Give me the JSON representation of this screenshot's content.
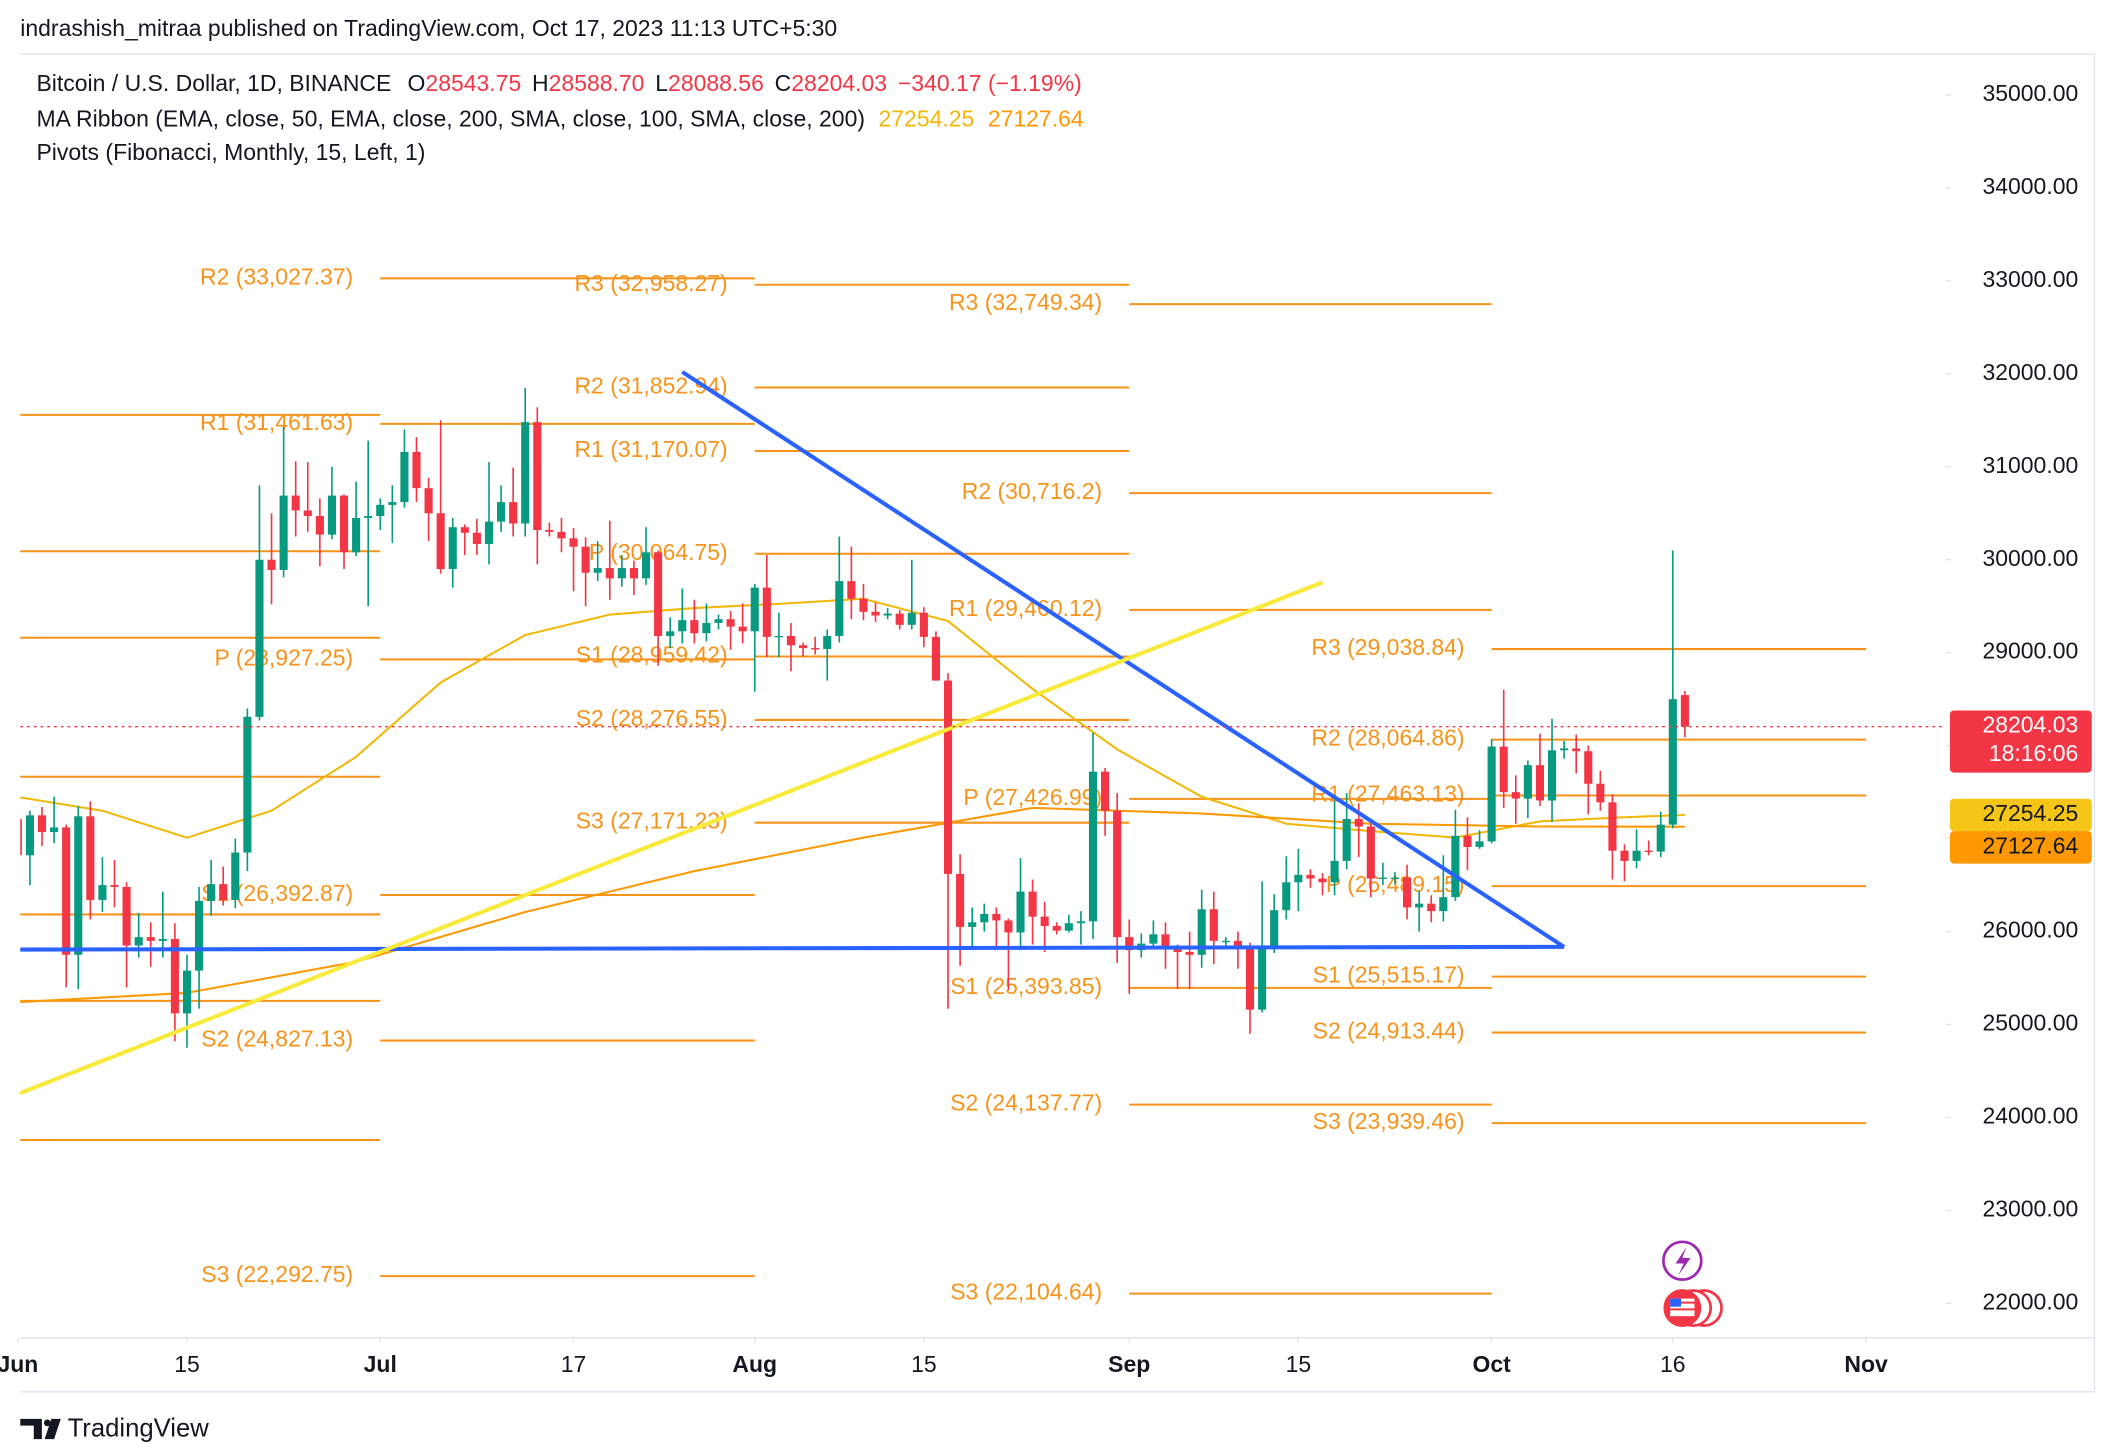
{
  "attribution": "indrashish_mitraa published on TradingView.com, Oct 17, 2023 11:13 UTC+5:30",
  "footer_logo": "TradingView",
  "chart_data": {
    "type": "candlestick",
    "title": "Bitcoin / U.S. Dollar, 1D, BINANCE",
    "header_ohlc": [
      {
        "prefix": "O",
        "text": "28543.75"
      },
      {
        "prefix": "H",
        "text": "28588.70"
      },
      {
        "prefix": "L",
        "text": "28088.56"
      },
      {
        "prefix": "C",
        "text": "28204.03"
      }
    ],
    "header_change": "−340.17 (−1.19%)",
    "countdown": "18:16:06",
    "up_color": "#089981",
    "down_color": "#f23645",
    "dates": [
      "Jun 1",
      "Jun 2",
      "Jun 3",
      "Jun 4",
      "Jun 5",
      "Jun 6",
      "Jun 7",
      "Jun 8",
      "Jun 9",
      "Jun 10",
      "Jun 11",
      "Jun 12",
      "Jun 13",
      "Jun 14",
      "Jun 15",
      "Jun 16",
      "Jun 17",
      "Jun 18",
      "Jun 19",
      "Jun 20",
      "Jun 21",
      "Jun 22",
      "Jun 23",
      "Jun 24",
      "Jun 25",
      "Jun 26",
      "Jun 27",
      "Jun 28",
      "Jun 29",
      "Jun 30",
      "Jul 1",
      "Jul 2",
      "Jul 3",
      "Jul 4",
      "Jul 5",
      "Jul 6",
      "Jul 7",
      "Jul 8",
      "Jul 9",
      "Jul 10",
      "Jul 11",
      "Jul 12",
      "Jul 13",
      "Jul 14",
      "Jul 15",
      "Jul 16",
      "Jul 17",
      "Jul 18",
      "Jul 19",
      "Jul 20",
      "Jul 21",
      "Jul 22",
      "Jul 23",
      "Jul 24",
      "Jul 25",
      "Jul 26",
      "Jul 27",
      "Jul 28",
      "Jul 29",
      "Jul 30",
      "Jul 31",
      "Aug 1",
      "Aug 2",
      "Aug 3",
      "Aug 4",
      "Aug 5",
      "Aug 6",
      "Aug 7",
      "Aug 8",
      "Aug 9",
      "Aug 10",
      "Aug 11",
      "Aug 12",
      "Aug 13",
      "Aug 14",
      "Aug 15",
      "Aug 16",
      "Aug 17",
      "Aug 18",
      "Aug 19",
      "Aug 20",
      "Aug 21",
      "Aug 22",
      "Aug 23",
      "Aug 24",
      "Aug 25",
      "Aug 26",
      "Aug 27",
      "Aug 28",
      "Aug 29",
      "Aug 30",
      "Aug 31",
      "Sep 1",
      "Sep 2",
      "Sep 3",
      "Sep 4",
      "Sep 5",
      "Sep 6",
      "Sep 7",
      "Sep 8",
      "Sep 9",
      "Sep 10",
      "Sep 11",
      "Sep 12",
      "Sep 13",
      "Sep 14",
      "Sep 15",
      "Sep 16",
      "Sep 17",
      "Sep 18",
      "Sep 19",
      "Sep 20",
      "Sep 21",
      "Sep 22",
      "Sep 23",
      "Sep 24",
      "Sep 25",
      "Sep 26",
      "Sep 27",
      "Sep 28",
      "Sep 29",
      "Sep 30",
      "Oct 1",
      "Oct 2",
      "Oct 3",
      "Oct 4",
      "Oct 5",
      "Oct 6",
      "Oct 7",
      "Oct 8",
      "Oct 9",
      "Oct 10",
      "Oct 11",
      "Oct 12",
      "Oct 13",
      "Oct 14",
      "Oct 15",
      "Oct 16",
      "Oct 17"
    ],
    "open": [
      27210,
      26820,
      27250,
      27070,
      27120,
      25750,
      27240,
      26340,
      26500,
      26480,
      25850,
      25940,
      25900,
      25920,
      25120,
      25580,
      26330,
      26510,
      26340,
      26850,
      28310,
      30000,
      29890,
      30690,
      30530,
      30470,
      30270,
      30690,
      30080,
      30450,
      30470,
      30590,
      30620,
      31160,
      30770,
      30500,
      29900,
      30350,
      30290,
      30170,
      30410,
      30620,
      30390,
      31480,
      30320,
      30300,
      30230,
      30140,
      29860,
      29910,
      29800,
      29910,
      29800,
      30080,
      29180,
      29230,
      29350,
      29210,
      29320,
      29360,
      29280,
      29230,
      29700,
      29170,
      29180,
      29080,
      29050,
      29040,
      29180,
      29770,
      29580,
      29440,
      29400,
      29420,
      29300,
      29430,
      29170,
      28700,
      26620,
      26050,
      26100,
      26190,
      26120,
      25990,
      26430,
      26160,
      26060,
      26010,
      26090,
      26110,
      27720,
      27300,
      25940,
      25800,
      25870,
      25970,
      25810,
      25780,
      25750,
      26240,
      25900,
      25900,
      25840,
      25160,
      25840,
      26230,
      26530,
      26610,
      26570,
      26530,
      26760,
      27210,
      27130,
      26570,
      26580,
      26580,
      26260,
      26300,
      26220,
      26370,
      27030,
      26910,
      26970,
      27990,
      27500,
      27430,
      27790,
      27410,
      27950,
      27970,
      27940,
      27590,
      27390,
      26870,
      26760,
      26870,
      26860,
      27150,
      28543.75
    ],
    "high": [
      27350,
      27300,
      27340,
      27450,
      27150,
      27350,
      27400,
      26800,
      26770,
      26530,
      26200,
      26100,
      26430,
      26090,
      25750,
      26480,
      26770,
      26700,
      27000,
      28400,
      30800,
      30500,
      31430,
      31060,
      31050,
      30660,
      31000,
      30700,
      30840,
      31280,
      30660,
      30800,
      31400,
      31320,
      30880,
      31500,
      30450,
      30380,
      30440,
      31050,
      30800,
      30990,
      31850,
      31640,
      30400,
      30450,
      30340,
      30240,
      30200,
      30420,
      30050,
      29990,
      30350,
      30100,
      29380,
      29690,
      29570,
      29530,
      29410,
      29450,
      29530,
      29740,
      30050,
      29430,
      29320,
      29110,
      29170,
      29250,
      30250,
      30140,
      29740,
      29540,
      29480,
      29460,
      30000,
      29490,
      29230,
      28780,
      26830,
      26260,
      26300,
      26260,
      26140,
      26790,
      26560,
      26320,
      26100,
      26180,
      26220,
      28140,
      27760,
      27490,
      26130,
      25980,
      26120,
      26100,
      25860,
      26000,
      26450,
      26430,
      25940,
      26000,
      25880,
      26540,
      26400,
      26810,
      26890,
      26670,
      26630,
      27410,
      27490,
      27380,
      27160,
      26740,
      26640,
      26720,
      26440,
      26390,
      26820,
      27310,
      27230,
      27090,
      28070,
      28600,
      27680,
      27840,
      28130,
      28290,
      28050,
      28120,
      28000,
      27730,
      27480,
      26940,
      27100,
      26980,
      27290,
      30100,
      28588.7
    ],
    "low": [
      26600,
      26500,
      26920,
      26950,
      25400,
      25380,
      26130,
      26210,
      26260,
      25400,
      25720,
      25620,
      25720,
      24820,
      24750,
      25170,
      26170,
      26280,
      26250,
      26650,
      28270,
      29520,
      29810,
      30250,
      30300,
      29930,
      30220,
      29900,
      30040,
      29500,
      30320,
      30180,
      30560,
      30620,
      30200,
      29850,
      29700,
      30050,
      30050,
      29950,
      30300,
      30250,
      30250,
      29950,
      30250,
      30080,
      29660,
      29500,
      29770,
      29570,
      29710,
      29620,
      29730,
      28860,
      29050,
      29100,
      29100,
      29120,
      29250,
      29030,
      29100,
      28580,
      28950,
      28950,
      28800,
      28960,
      28980,
      28700,
      29110,
      29360,
      29350,
      29330,
      29360,
      29250,
      29250,
      29060,
      28700,
      25170,
      25630,
      25800,
      26000,
      25810,
      25370,
      25800,
      25860,
      25780,
      25970,
      25990,
      25860,
      25920,
      27030,
      25660,
      25330,
      25720,
      25810,
      25600,
      25380,
      25380,
      25610,
      25650,
      25810,
      25600,
      24900,
      25130,
      25770,
      26130,
      26220,
      26470,
      26390,
      26390,
      26670,
      26800,
      26370,
      26500,
      26510,
      26130,
      26000,
      26100,
      26110,
      26330,
      26660,
      26890,
      26950,
      27330,
      27160,
      27220,
      27350,
      27180,
      27860,
      27700,
      27260,
      27300,
      26560,
      26540,
      26680,
      26820,
      26800,
      27110,
      28088.56
    ],
    "close": [
      26820,
      27250,
      27070,
      27120,
      25750,
      27240,
      26340,
      26500,
      26480,
      25850,
      25940,
      25900,
      25920,
      25120,
      25580,
      26330,
      26510,
      26340,
      26850,
      28310,
      30000,
      29890,
      30690,
      30530,
      30470,
      30270,
      30690,
      30080,
      30450,
      30470,
      30590,
      30620,
      31160,
      30770,
      30500,
      29900,
      30350,
      30290,
      30170,
      30410,
      30620,
      30390,
      31480,
      30320,
      30300,
      30230,
      30140,
      29860,
      29910,
      29800,
      29910,
      29800,
      30080,
      29180,
      29230,
      29350,
      29210,
      29320,
      29360,
      29280,
      29230,
      29700,
      29170,
      29180,
      29080,
      29050,
      29040,
      29180,
      29770,
      29580,
      29440,
      29400,
      29420,
      29300,
      29430,
      29170,
      28700,
      26620,
      26050,
      26100,
      26190,
      26120,
      25990,
      26430,
      26160,
      26060,
      26010,
      26090,
      26110,
      27720,
      27300,
      25940,
      25800,
      25870,
      25970,
      25810,
      25780,
      25750,
      26240,
      25900,
      25900,
      25840,
      25160,
      25840,
      26230,
      26530,
      26610,
      26570,
      26530,
      26760,
      27210,
      27130,
      26570,
      26580,
      26580,
      26260,
      26300,
      26220,
      26370,
      27030,
      26910,
      26970,
      27990,
      27500,
      27430,
      27790,
      27410,
      27950,
      27970,
      27940,
      27590,
      27390,
      26870,
      26760,
      26870,
      26860,
      27150,
      28500,
      28204.03
    ],
    "xlim": [
      0.2,
      159.6
    ],
    "xticks": [
      {
        "value": 0,
        "label": "Jun"
      },
      {
        "value": 14,
        "label": "15"
      },
      {
        "value": 30,
        "label": "Jul"
      },
      {
        "value": 46,
        "label": "17"
      },
      {
        "value": 61,
        "label": "Aug"
      },
      {
        "value": 75,
        "label": "15"
      },
      {
        "value": 92,
        "label": "Sep"
      },
      {
        "value": 106,
        "label": "15"
      },
      {
        "value": 122,
        "label": "Oct"
      },
      {
        "value": 137,
        "label": "16"
      },
      {
        "value": 153,
        "label": "Nov"
      }
    ],
    "ylim": [
      21630,
      35440
    ],
    "yticks": [
      {
        "value": 35000,
        "label": "35000.00"
      },
      {
        "value": 34000,
        "label": "34000.00"
      },
      {
        "value": 33000,
        "label": "33000.00"
      },
      {
        "value": 32000,
        "label": "32000.00"
      },
      {
        "value": 31000,
        "label": "31000.00"
      },
      {
        "value": 30000,
        "label": "30000.00"
      },
      {
        "value": 29000,
        "label": "29000.00"
      },
      {
        "value": 28000,
        "label": "28000.00"
      },
      {
        "value": 27000,
        "label": "27000.00"
      },
      {
        "value": 26000,
        "label": "26000.00"
      },
      {
        "value": 25000,
        "label": "25000.00"
      },
      {
        "value": 24000,
        "label": "24000.00"
      },
      {
        "value": 23000,
        "label": "23000.00"
      },
      {
        "value": 22000,
        "label": "22000.00"
      }
    ],
    "grid": false,
    "ma_ribbon": {
      "title": "MA Ribbon (EMA, close, 50, EMA, close, 200, SMA, close, 100, SMA, close, 200)",
      "lines": [
        {
          "color": "#f2b705",
          "tag_color": "#f5c518",
          "x": [
            "Jun 1",
            "Jun 8",
            "Jun 15",
            "Jun 22",
            "Jun 29",
            "Jul 6",
            "Jul 13",
            "Jul 20",
            "Jul 27",
            "Aug 3",
            "Aug 10",
            "Aug 17",
            "Aug 24",
            "Aug 31",
            "Sep 7",
            "Sep 14",
            "Sep 21",
            "Sep 28",
            "Oct 5",
            "Oct 12",
            "Oct 17"
          ],
          "values": [
            27447,
            27300,
            27010,
            27300,
            27880,
            28680,
            29190,
            29410,
            29480,
            29525,
            29580,
            29340,
            28610,
            27960,
            27450,
            27160,
            27080,
            27010,
            27185,
            27230,
            27254.25
          ]
        },
        {
          "color": "#ff9800",
          "tag_color": "#ff9800",
          "x": [
            "Jun 1",
            "Jun 15",
            "Jun 29",
            "Jul 13",
            "Jul 27",
            "Aug 10",
            "Aug 24",
            "Sep 7",
            "Sep 21",
            "Oct 5",
            "Oct 17"
          ],
          "values": [
            25240,
            25340,
            25675,
            26210,
            26650,
            27010,
            27330,
            27270,
            27160,
            27130,
            27127.64
          ]
        }
      ]
    },
    "pivots_title": "Pivots (Fibonacci, Monthly, 15, Left, 1)",
    "pivot_color": "#f7931a",
    "pivots": [
      {
        "levels": [
          31558,
          30091,
          29161,
          27665,
          26184,
          25254,
          23758
        ],
        "labels": [
          null,
          null,
          null,
          null,
          null,
          null,
          null
        ]
      },
      {
        "levels": [
          33027.37,
          31461.63,
          28927.25,
          26392.87,
          24827.13,
          22292.75
        ],
        "labels": [
          "R2 (33,027.37)",
          "R1 (31,461.63)",
          "P (28,927.25)",
          "S1 (26,392.87)",
          "S2 (24,827.13)",
          "S3 (22,292.75)"
        ]
      },
      {
        "levels": [
          32958.27,
          31852.94,
          31170.07,
          30064.75,
          28959.42,
          28276.55,
          27171.23
        ],
        "labels": [
          "R3 (32,958.27)",
          "R2 (31,852.94)",
          "R1 (31,170.07)",
          "P (30,064.75)",
          "S1 (28,959.42)",
          "S2 (28,276.55)",
          "S3 (27,171.23)"
        ]
      },
      {
        "levels": [
          32749.34,
          30716.2,
          29460.12,
          27426.99,
          25393.85,
          24137.77,
          22104.64
        ],
        "labels": [
          "R3 (32,749.34)",
          "R2 (30,716.2)",
          "R1 (29,460.12)",
          "P (27,426.99)",
          "S1 (25,393.85)",
          "S2 (24,137.77)",
          "S3 (22,104.64)"
        ]
      },
      {
        "levels": [
          29038.84,
          28064.86,
          27463.13,
          26489.15,
          25515.17,
          24913.44,
          23939.46
        ],
        "labels": [
          "R3 (29,038.84)",
          "R2 (28,064.86)",
          "R1 (27,463.13)",
          "P (26,489.15)",
          "S1 (25,515.17)",
          "S2 (24,913.44)",
          "S3 (23,939.46)"
        ]
      }
    ],
    "trendlines": [
      {
        "color": "#2962ff",
        "points": [
          {
            "x": "Jul 26",
            "y": 32020
          },
          {
            "x": "Oct 7",
            "y": 25835
          }
        ]
      },
      {
        "color": "#2962ff",
        "points": [
          {
            "x": "Jun 1",
            "y": 25806
          },
          {
            "x": "Oct 7",
            "y": 25835
          }
        ]
      },
      {
        "color": "#f7ea3a",
        "points": [
          {
            "x": "Jun 1",
            "y": 24252
          },
          {
            "x": "Sep 17",
            "y": 29757
          }
        ]
      }
    ]
  }
}
